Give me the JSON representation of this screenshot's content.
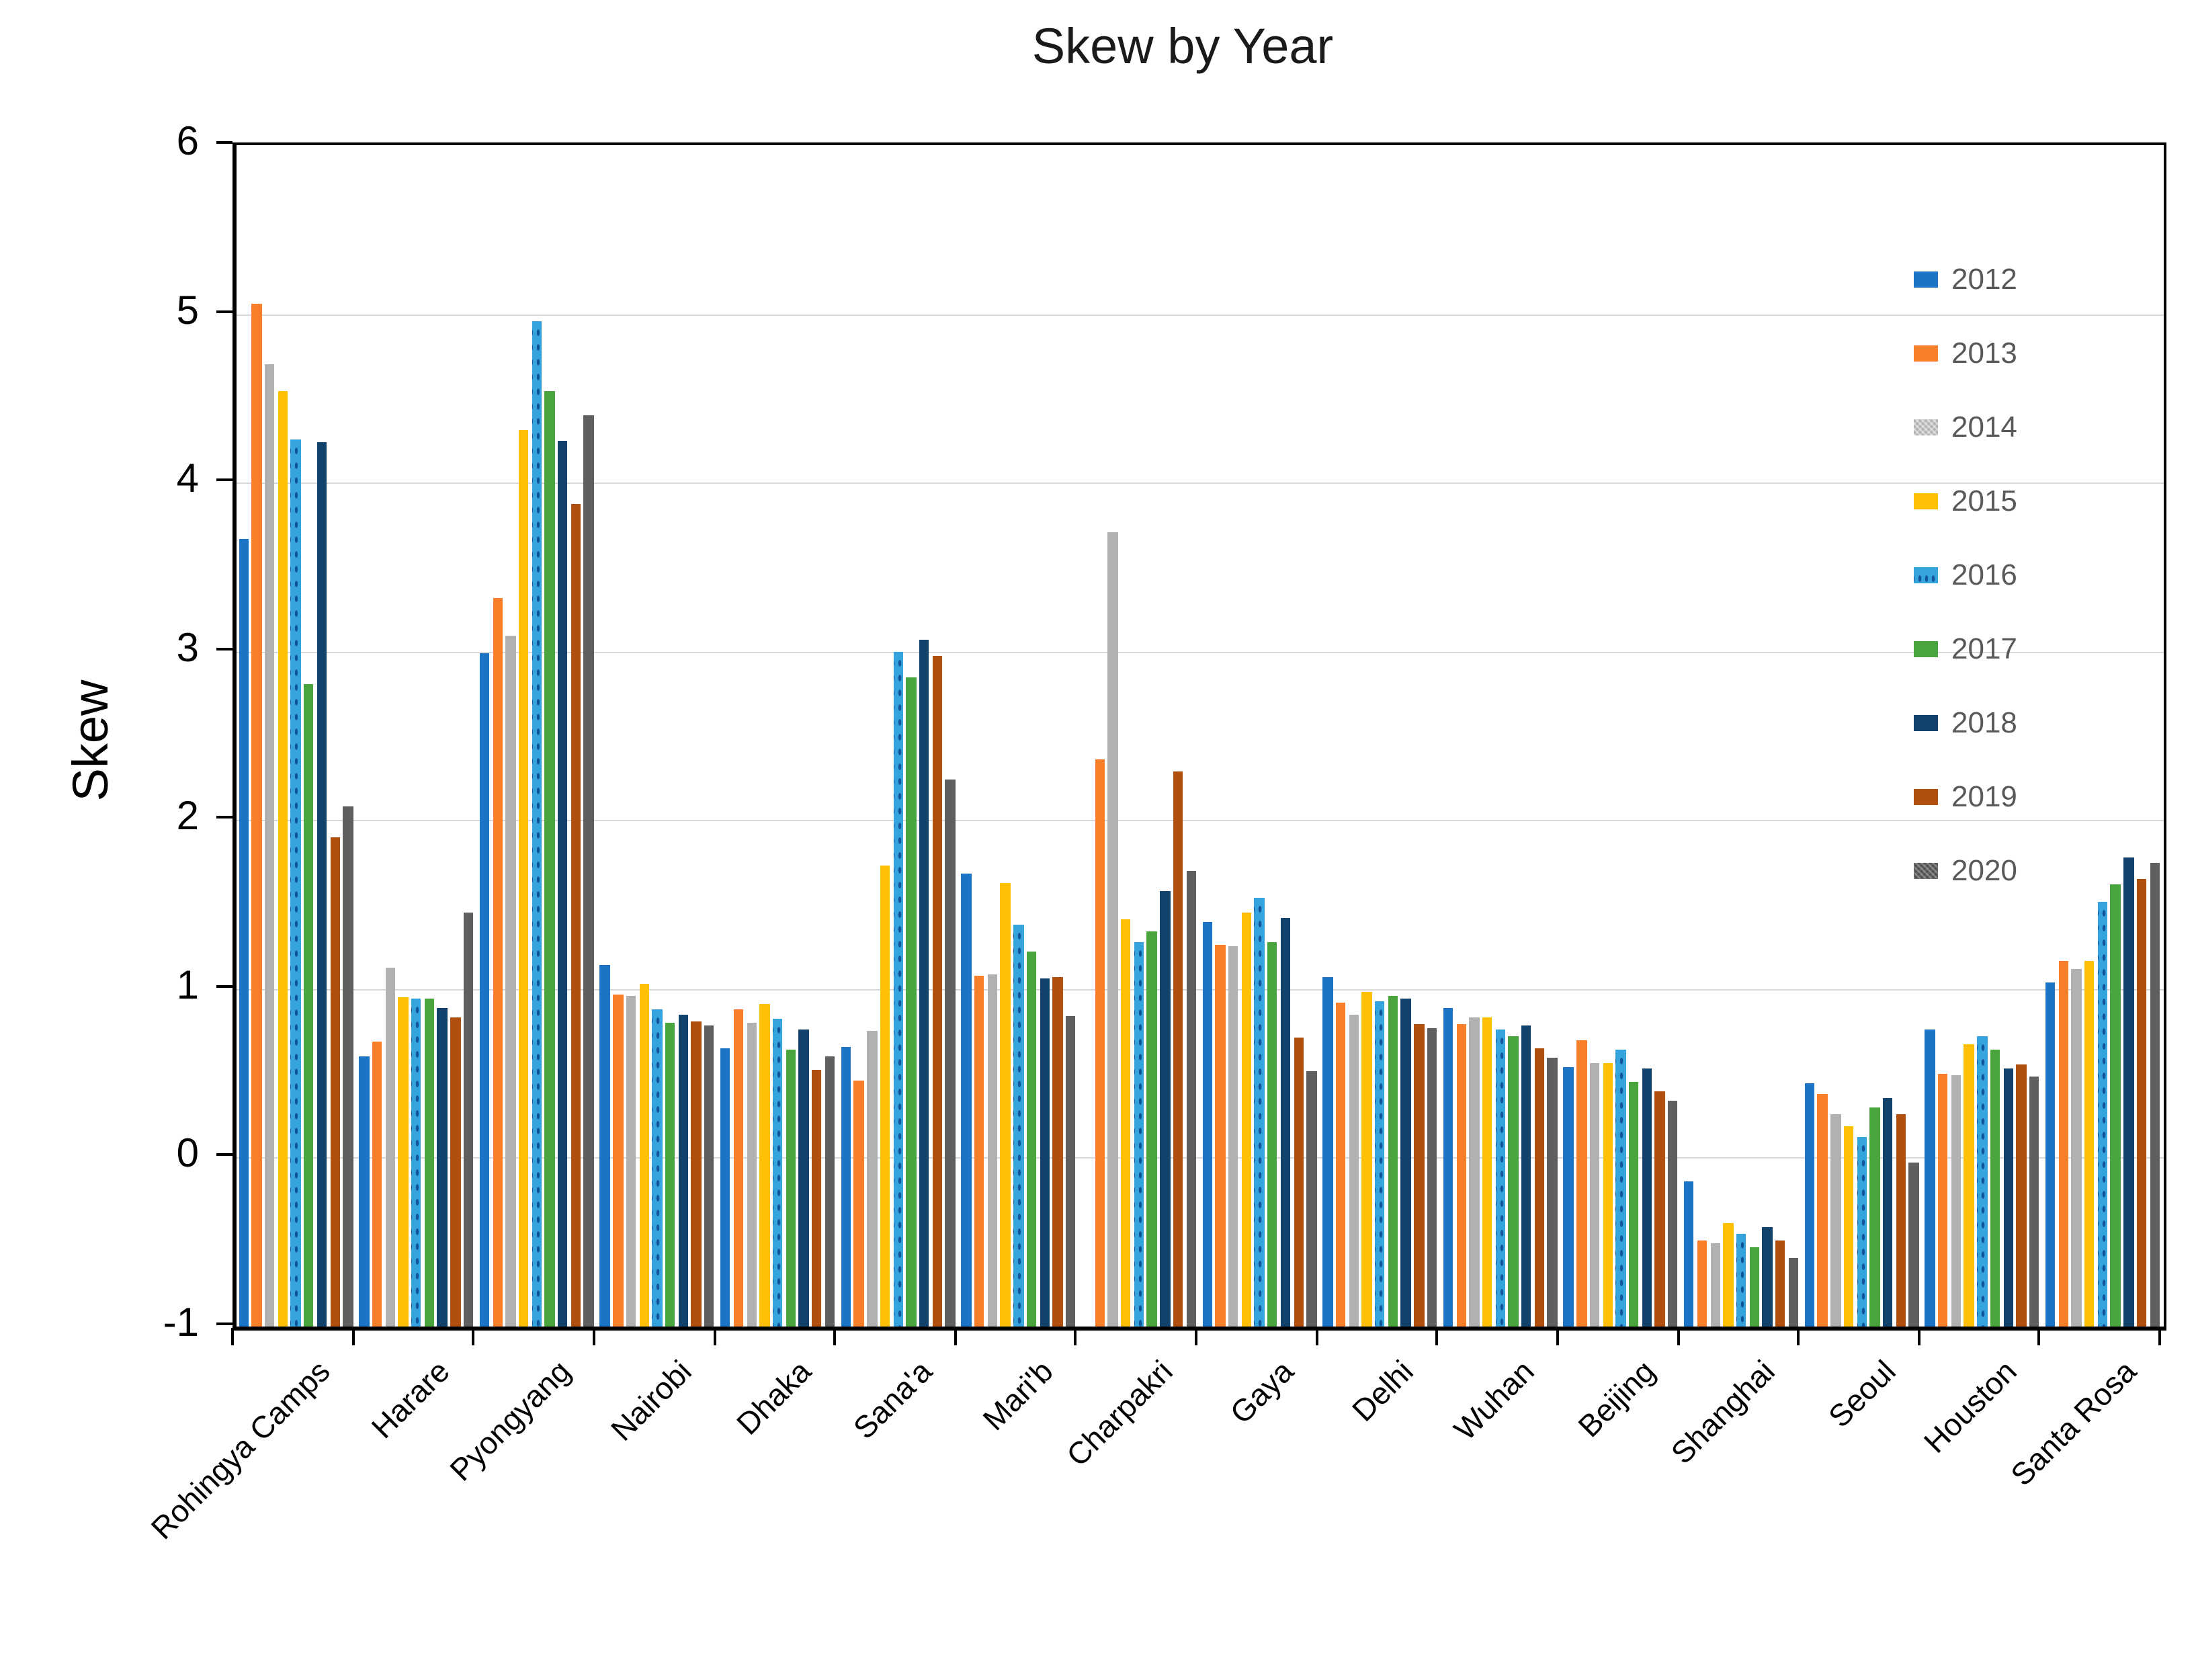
{
  "title": "Skew by Year",
  "chart_data": {
    "type": "bar",
    "title": "Skew by Year",
    "xlabel": "",
    "ylabel": "Skew",
    "ylim": [
      -1,
      6
    ],
    "yticks": [
      6,
      5,
      4,
      3,
      2,
      1,
      0,
      -1
    ],
    "gridlines_at": [
      5,
      4,
      3,
      2,
      1,
      0
    ],
    "grid": true,
    "bar_base": -1,
    "legend_position": "upper-right-inside",
    "legend_text_color": "#595959",
    "categories": [
      "Rohingya Camps",
      "Harare",
      "Pyongyang",
      "Nairobi",
      "Dhaka",
      "Sana'a",
      "Mari'b",
      "Charpakri",
      "Gaya",
      "Delhi",
      "Wuhan",
      "Beijing",
      "Shanghai",
      "Seoul",
      "Houston",
      "Santa Rosa"
    ],
    "series": [
      {
        "name": "2012",
        "color": "#1C74C6",
        "pattern": "solid",
        "values": [
          3.67,
          0.6,
          2.99,
          1.14,
          0.65,
          0.66,
          1.68,
          null,
          1.4,
          1.07,
          0.89,
          0.54,
          -0.14,
          0.44,
          0.76,
          1.04
        ]
      },
      {
        "name": "2013",
        "color": "#F8802B",
        "pattern": "solid",
        "values": [
          5.06,
          0.69,
          3.32,
          0.97,
          0.88,
          0.46,
          1.08,
          2.36,
          1.26,
          0.92,
          0.79,
          0.7,
          -0.49,
          0.38,
          0.5,
          1.17
        ]
      },
      {
        "name": "2014",
        "color": "#B1B1B1",
        "pattern": "hatch-light",
        "values": [
          4.7,
          1.13,
          3.09,
          0.96,
          0.8,
          0.75,
          1.09,
          3.71,
          1.25,
          0.85,
          0.83,
          0.56,
          -0.51,
          0.26,
          0.49,
          1.12
        ]
      },
      {
        "name": "2015",
        "color": "#FEC002",
        "pattern": "solid",
        "values": [
          4.54,
          0.95,
          4.31,
          1.03,
          0.91,
          1.73,
          1.63,
          1.41,
          1.45,
          0.98,
          0.83,
          0.56,
          -0.39,
          0.19,
          0.67,
          1.17
        ]
      },
      {
        "name": "2016",
        "color": "#36A4DC",
        "pattern": "dots",
        "values": [
          4.26,
          0.94,
          4.96,
          0.88,
          0.82,
          3.0,
          1.38,
          1.28,
          1.54,
          0.93,
          0.76,
          0.64,
          -0.45,
          0.12,
          0.72,
          1.52
        ]
      },
      {
        "name": "2017",
        "color": "#49A63E",
        "pattern": "solid",
        "values": [
          2.81,
          0.94,
          4.54,
          0.8,
          0.64,
          2.85,
          1.22,
          1.34,
          1.28,
          0.96,
          0.72,
          0.45,
          -0.53,
          0.3,
          0.64,
          1.62
        ]
      },
      {
        "name": "2018",
        "color": "#12426C",
        "pattern": "solid",
        "values": [
          4.24,
          0.89,
          4.25,
          0.85,
          0.76,
          3.07,
          1.06,
          1.58,
          1.42,
          0.94,
          0.78,
          0.53,
          -0.41,
          0.35,
          0.53,
          1.78
        ]
      },
      {
        "name": "2019",
        "color": "#B04F0E",
        "pattern": "solid",
        "values": [
          1.9,
          0.83,
          3.87,
          0.81,
          0.52,
          2.97,
          1.07,
          2.29,
          0.71,
          0.79,
          0.65,
          0.39,
          -0.49,
          0.26,
          0.55,
          1.65
        ]
      },
      {
        "name": "2020",
        "color": "#5F5F5F",
        "pattern": "hatch-dark",
        "values": [
          2.08,
          1.45,
          4.4,
          0.78,
          0.6,
          2.24,
          0.84,
          1.7,
          0.51,
          0.77,
          0.59,
          0.34,
          -0.59,
          -0.03,
          0.48,
          1.75
        ]
      }
    ]
  }
}
